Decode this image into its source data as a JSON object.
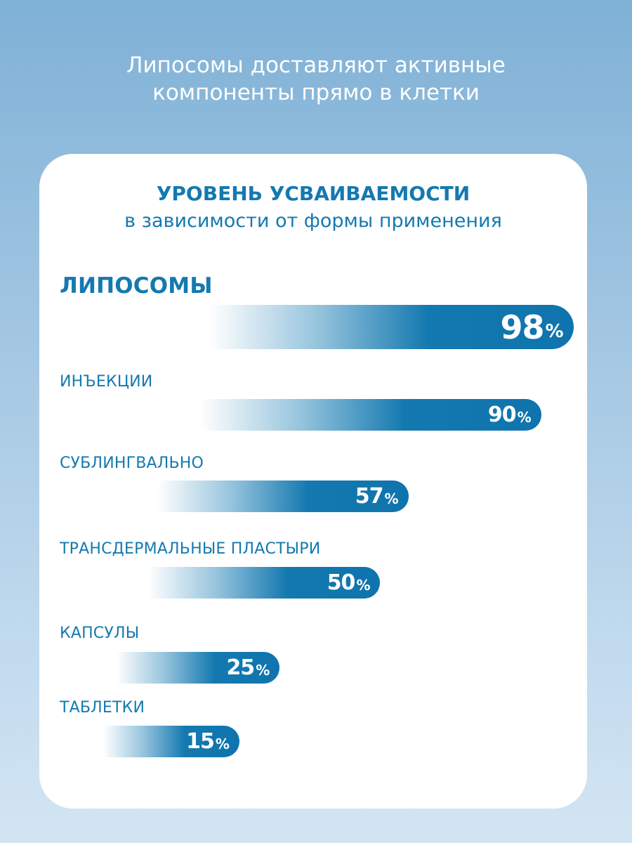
{
  "headline": {
    "line1": "Липосомы доставляют активные",
    "line2": "компоненты прямо в клетки"
  },
  "card": {
    "title": "УРОВЕНЬ УСВАИВАЕМОСТИ",
    "subtitle": "в зависимости от формы применения"
  },
  "chart_data": {
    "type": "bar",
    "orientation": "horizontal",
    "title": "УРОВЕНЬ УСВАИВАЕМОСТИ",
    "subtitle": "в зависимости от формы применения",
    "categories": [
      "ЛИПОСОМЫ",
      "ИНЪЕКЦИИ",
      "СУБЛИНГВАЛЬНО",
      "ТРАНСДЕРМАЛЬНЫЕ ПЛАСТЫРИ",
      "КАПСУЛЫ",
      "ТАБЛЕТКИ"
    ],
    "values": [
      98,
      90,
      57,
      50,
      25,
      15
    ],
    "unit": "%",
    "highlighted_category": "ЛИПОСОМЫ",
    "bar_color": "#1479b0",
    "label_color": "#1479b0"
  }
}
